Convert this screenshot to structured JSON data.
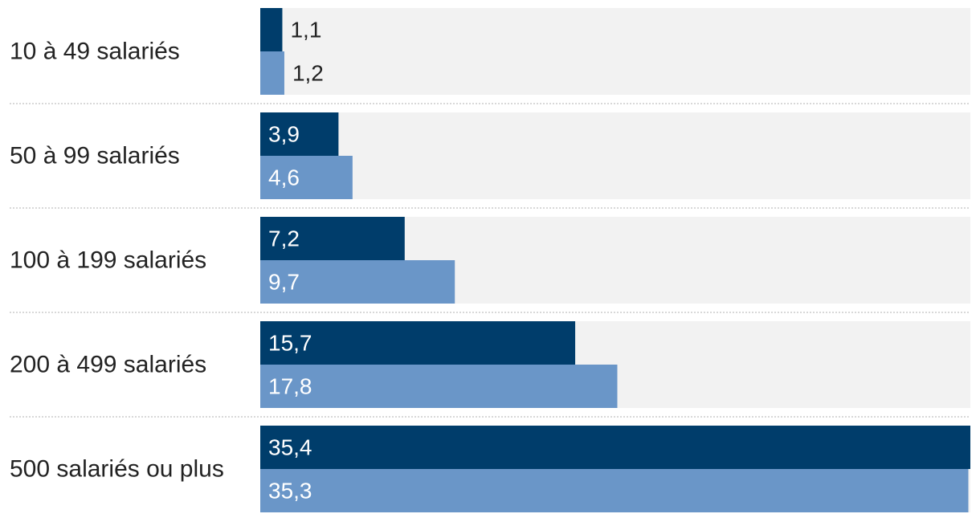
{
  "chart_data": {
    "type": "bar",
    "orientation": "horizontal",
    "categories": [
      "10 à 49 salariés",
      "50 à 99 salariés",
      "100 à 199 salariés",
      "200 à 499 salariés",
      "500 salariés ou plus"
    ],
    "series": [
      {
        "values": [
          1.1,
          3.9,
          7.2,
          15.7,
          35.4
        ],
        "labels": [
          "1,1",
          "3,9",
          "7,2",
          "15,7",
          "35,4"
        ],
        "color": "#003d6b"
      },
      {
        "values": [
          1.2,
          4.6,
          9.7,
          17.8,
          35.3
        ],
        "labels": [
          "1,2",
          "4,6",
          "9,7",
          "17,8",
          "35,3"
        ],
        "color": "#6a96c8"
      }
    ],
    "xlim": [
      0,
      35.4
    ],
    "track_color": "#f2f2f2",
    "separator_color": "#cccccc",
    "grid": false,
    "legend": "none"
  }
}
